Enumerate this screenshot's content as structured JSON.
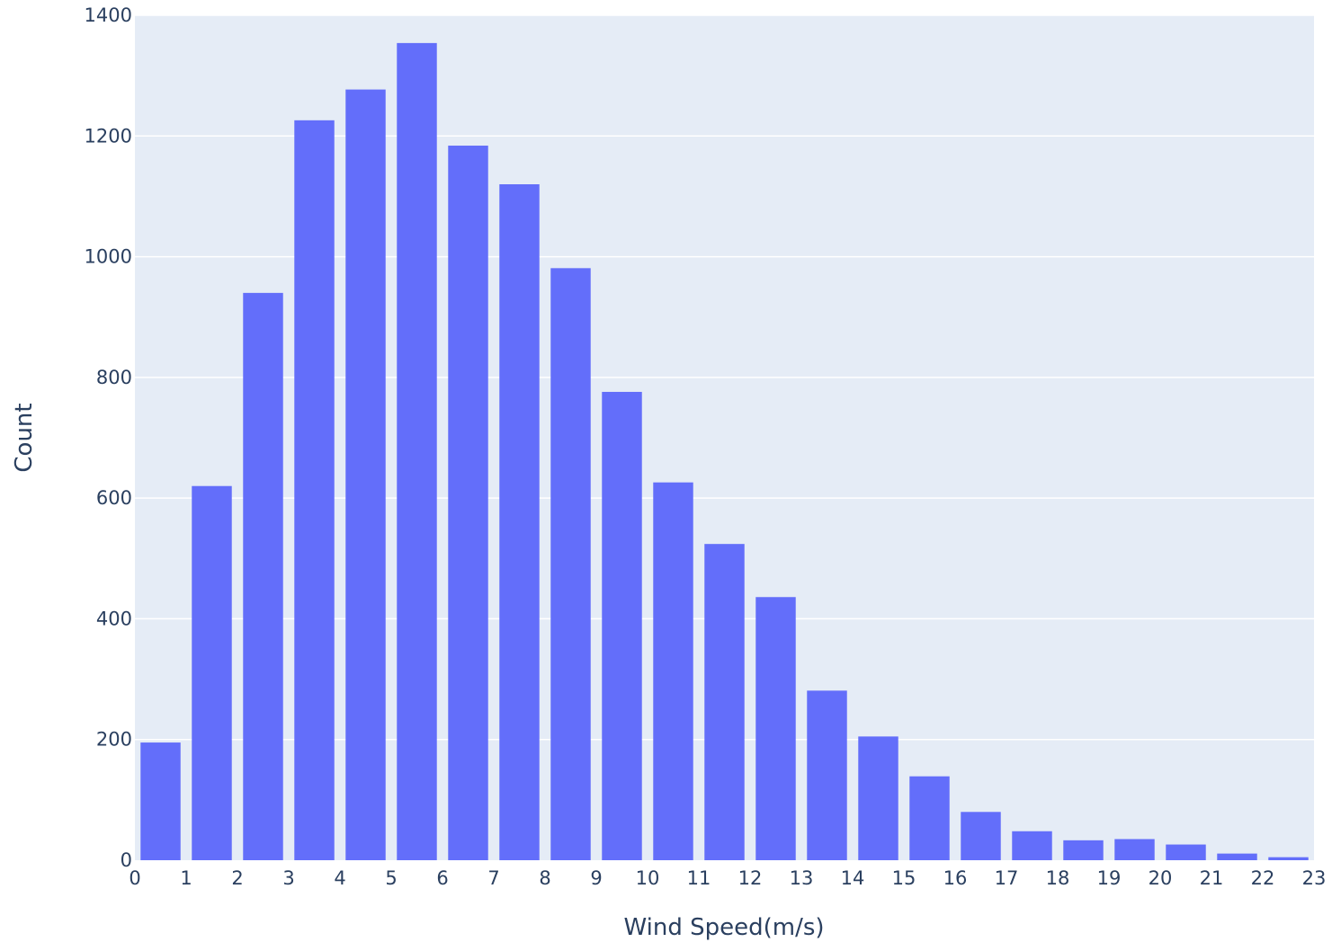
{
  "colors": {
    "plot_background": "#e5ecf6",
    "grid": "#ffffff",
    "bar": "#636efa",
    "text": "#2a3f5f"
  },
  "chart_data": {
    "type": "bar",
    "title": "",
    "xlabel": "Wind Speed(m/s)",
    "ylabel": "Count",
    "bins": [
      [
        0,
        1
      ],
      [
        1,
        2
      ],
      [
        2,
        3
      ],
      [
        3,
        4
      ],
      [
        4,
        5
      ],
      [
        5,
        6
      ],
      [
        6,
        7
      ],
      [
        7,
        8
      ],
      [
        8,
        9
      ],
      [
        9,
        10
      ],
      [
        10,
        11
      ],
      [
        11,
        12
      ],
      [
        12,
        13
      ],
      [
        13,
        14
      ],
      [
        14,
        15
      ],
      [
        15,
        16
      ],
      [
        16,
        17
      ],
      [
        17,
        18
      ],
      [
        18,
        19
      ],
      [
        19,
        20
      ],
      [
        20,
        21
      ],
      [
        21,
        22
      ],
      [
        22,
        23
      ]
    ],
    "values": [
      195,
      620,
      940,
      1226,
      1277,
      1354,
      1184,
      1120,
      981,
      776,
      626,
      524,
      436,
      281,
      205,
      139,
      80,
      48,
      33,
      35,
      26,
      11,
      5
    ],
    "xlim": [
      0,
      23
    ],
    "ylim": [
      0,
      1400
    ],
    "x_ticks": [
      "0",
      "1",
      "2",
      "3",
      "4",
      "5",
      "6",
      "7",
      "8",
      "9",
      "10",
      "11",
      "12",
      "13",
      "14",
      "15",
      "16",
      "17",
      "18",
      "19",
      "20",
      "21",
      "22",
      "23"
    ],
    "y_ticks": [
      "0",
      "200",
      "400",
      "600",
      "800",
      "1000",
      "1200",
      "1400"
    ],
    "grid": true,
    "legend": "none"
  }
}
